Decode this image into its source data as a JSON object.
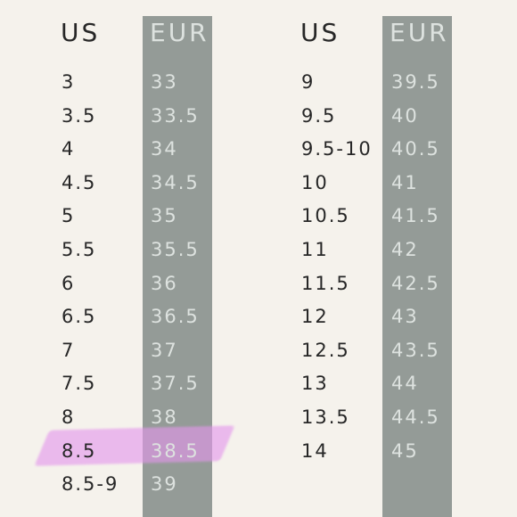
{
  "headers": {
    "us": "US",
    "eur": "EUR"
  },
  "left_table": {
    "rows": [
      {
        "us": "3",
        "eur": "33"
      },
      {
        "us": "3.5",
        "eur": "33.5"
      },
      {
        "us": "4",
        "eur": "34"
      },
      {
        "us": "4.5",
        "eur": "34.5"
      },
      {
        "us": "5",
        "eur": "35"
      },
      {
        "us": "5.5",
        "eur": "35.5"
      },
      {
        "us": "6",
        "eur": "36"
      },
      {
        "us": "6.5",
        "eur": "36.5"
      },
      {
        "us": "7",
        "eur": "37"
      },
      {
        "us": "7.5",
        "eur": "37.5"
      },
      {
        "us": "8",
        "eur": "38"
      },
      {
        "us": "8.5",
        "eur": "38.5",
        "highlighted": true
      },
      {
        "us": "8.5-9",
        "eur": "39"
      }
    ]
  },
  "right_table": {
    "rows": [
      {
        "us": "9",
        "eur": "39.5"
      },
      {
        "us": "9.5",
        "eur": "40"
      },
      {
        "us": "9.5-10",
        "eur": "40.5"
      },
      {
        "us": "10",
        "eur": "41"
      },
      {
        "us": "10.5",
        "eur": "41.5"
      },
      {
        "us": "11",
        "eur": "42"
      },
      {
        "us": "11.5",
        "eur": "42.5"
      },
      {
        "us": "12",
        "eur": "43"
      },
      {
        "us": "12.5",
        "eur": "43.5"
      },
      {
        "us": "13",
        "eur": "44"
      },
      {
        "us": "13.5",
        "eur": "44.5"
      },
      {
        "us": "14",
        "eur": "45"
      }
    ]
  },
  "colors": {
    "background": "#f5f2ec",
    "eur_band": "#949b97",
    "us_text": "#272727",
    "eur_text": "#dde2df",
    "highlight": "#e496ec"
  }
}
